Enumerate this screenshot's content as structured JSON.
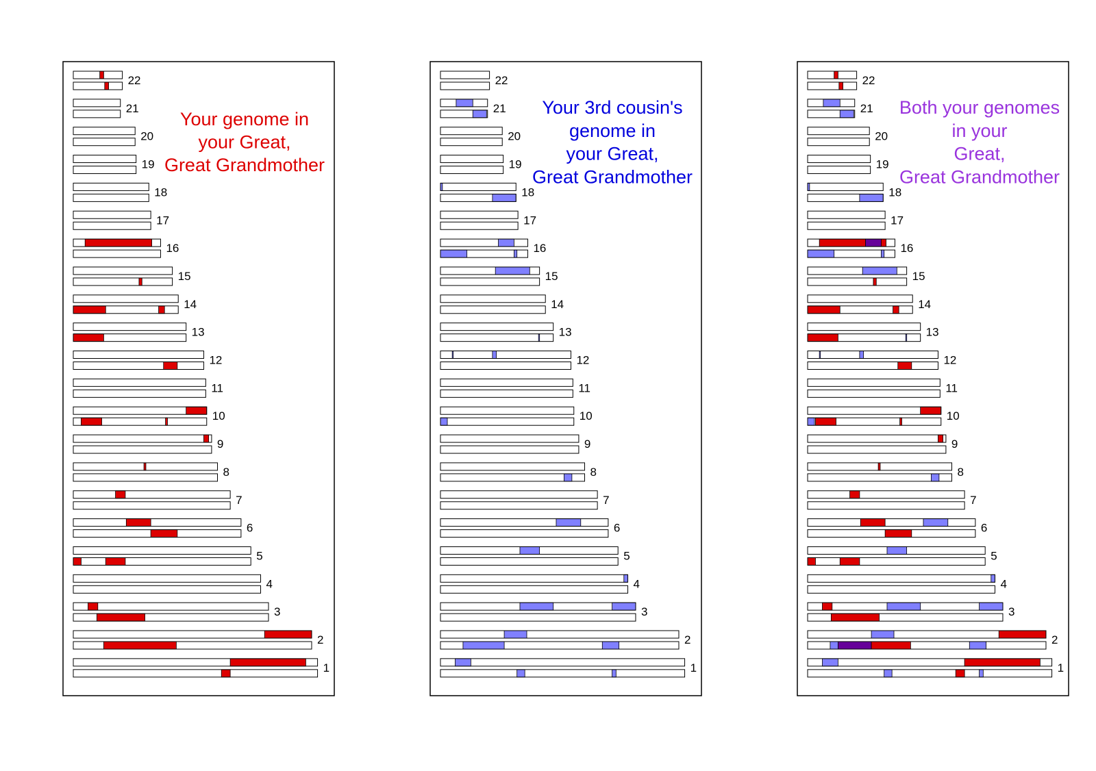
{
  "colors": {
    "red": "#dd0000",
    "blue": "#8080ff",
    "purple": "#660099",
    "outline": "#000000",
    "fill": "#ffffff"
  },
  "chart_data": [
    {
      "type": "chromosome-ideogram",
      "title_lines": [
        "Your genome in",
        "your Great,",
        "Great Grandmother"
      ],
      "title_color": "#dd0000",
      "chromosome_lengths": {
        "1": 249,
        "2": 243,
        "3": 199,
        "4": 191,
        "5": 181,
        "6": 171,
        "7": 160,
        "8": 147,
        "9": 141,
        "10": 136,
        "11": 135,
        "12": 133,
        "13": 115,
        "14": 107,
        "15": 101,
        "16": 89,
        "17": 79,
        "18": 77,
        "19": 64,
        "20": 63,
        "21": 48,
        "22": 50
      },
      "segments": [
        {
          "chr": "22",
          "strand": 1,
          "start": 27,
          "end": 31,
          "color": "red"
        },
        {
          "chr": "22",
          "strand": 2,
          "start": 32,
          "end": 36,
          "color": "red"
        },
        {
          "chr": "16",
          "strand": 1,
          "start": 12,
          "end": 80,
          "color": "red"
        },
        {
          "chr": "15",
          "strand": 2,
          "start": 67,
          "end": 70,
          "color": "red"
        },
        {
          "chr": "14",
          "strand": 2,
          "start": 0,
          "end": 33,
          "color": "red"
        },
        {
          "chr": "14",
          "strand": 2,
          "start": 87,
          "end": 93,
          "color": "red"
        },
        {
          "chr": "13",
          "strand": 2,
          "start": 0,
          "end": 31,
          "color": "red"
        },
        {
          "chr": "12",
          "strand": 2,
          "start": 92,
          "end": 106,
          "color": "red"
        },
        {
          "chr": "10",
          "strand": 1,
          "start": 115,
          "end": 136,
          "color": "red"
        },
        {
          "chr": "10",
          "strand": 2,
          "start": 8,
          "end": 29,
          "color": "red"
        },
        {
          "chr": "10",
          "strand": 2,
          "start": 94,
          "end": 96,
          "color": "red"
        },
        {
          "chr": "9",
          "strand": 1,
          "start": 133,
          "end": 138,
          "color": "red"
        },
        {
          "chr": "8",
          "strand": 1,
          "start": 72,
          "end": 74,
          "color": "red"
        },
        {
          "chr": "7",
          "strand": 1,
          "start": 43,
          "end": 53,
          "color": "red"
        },
        {
          "chr": "6",
          "strand": 1,
          "start": 54,
          "end": 79,
          "color": "red"
        },
        {
          "chr": "6",
          "strand": 2,
          "start": 79,
          "end": 106,
          "color": "red"
        },
        {
          "chr": "5",
          "strand": 2,
          "start": 0,
          "end": 8,
          "color": "red"
        },
        {
          "chr": "5",
          "strand": 2,
          "start": 33,
          "end": 53,
          "color": "red"
        },
        {
          "chr": "3",
          "strand": 1,
          "start": 15,
          "end": 25,
          "color": "red"
        },
        {
          "chr": "3",
          "strand": 2,
          "start": 24,
          "end": 73,
          "color": "red"
        },
        {
          "chr": "2",
          "strand": 1,
          "start": 195,
          "end": 243,
          "color": "red"
        },
        {
          "chr": "2",
          "strand": 2,
          "start": 31,
          "end": 105,
          "color": "red"
        },
        {
          "chr": "1",
          "strand": 1,
          "start": 160,
          "end": 237,
          "color": "red"
        },
        {
          "chr": "1",
          "strand": 2,
          "start": 151,
          "end": 160,
          "color": "red"
        }
      ]
    },
    {
      "type": "chromosome-ideogram",
      "title_lines": [
        "Your 3rd cousin's",
        "genome in",
        "your Great,",
        "Great Grandmother"
      ],
      "title_color": "#0000dd",
      "chromosome_lengths": {
        "1": 249,
        "2": 243,
        "3": 199,
        "4": 191,
        "5": 181,
        "6": 171,
        "7": 160,
        "8": 147,
        "9": 141,
        "10": 136,
        "11": 135,
        "12": 133,
        "13": 115,
        "14": 107,
        "15": 101,
        "16": 89,
        "17": 79,
        "18": 77,
        "19": 64,
        "20": 63,
        "21": 48,
        "22": 50
      },
      "segments": [
        {
          "chr": "21",
          "strand": 1,
          "start": 16,
          "end": 33,
          "color": "blue"
        },
        {
          "chr": "21",
          "strand": 2,
          "start": 33,
          "end": 47,
          "color": "blue"
        },
        {
          "chr": "18",
          "strand": 1,
          "start": 0,
          "end": 2,
          "color": "blue"
        },
        {
          "chr": "18",
          "strand": 2,
          "start": 53,
          "end": 77,
          "color": "blue"
        },
        {
          "chr": "16",
          "strand": 1,
          "start": 59,
          "end": 75,
          "color": "blue"
        },
        {
          "chr": "16",
          "strand": 2,
          "start": 0,
          "end": 27,
          "color": "blue"
        },
        {
          "chr": "16",
          "strand": 2,
          "start": 75,
          "end": 78,
          "color": "blue"
        },
        {
          "chr": "15",
          "strand": 1,
          "start": 56,
          "end": 91,
          "color": "blue"
        },
        {
          "chr": "13",
          "strand": 2,
          "start": 100,
          "end": 101,
          "color": "blue"
        },
        {
          "chr": "12",
          "strand": 1,
          "start": 12,
          "end": 13,
          "color": "blue"
        },
        {
          "chr": "12",
          "strand": 1,
          "start": 53,
          "end": 57,
          "color": "blue"
        },
        {
          "chr": "10",
          "strand": 2,
          "start": 0,
          "end": 7,
          "color": "blue"
        },
        {
          "chr": "8",
          "strand": 2,
          "start": 126,
          "end": 134,
          "color": "blue"
        },
        {
          "chr": "6",
          "strand": 1,
          "start": 118,
          "end": 143,
          "color": "blue"
        },
        {
          "chr": "5",
          "strand": 1,
          "start": 81,
          "end": 101,
          "color": "blue"
        },
        {
          "chr": "4",
          "strand": 1,
          "start": 187,
          "end": 191,
          "color": "blue"
        },
        {
          "chr": "3",
          "strand": 1,
          "start": 81,
          "end": 115,
          "color": "blue"
        },
        {
          "chr": "3",
          "strand": 1,
          "start": 175,
          "end": 199,
          "color": "blue"
        },
        {
          "chr": "2",
          "strand": 1,
          "start": 65,
          "end": 88,
          "color": "blue"
        },
        {
          "chr": "2",
          "strand": 2,
          "start": 23,
          "end": 65,
          "color": "blue"
        },
        {
          "chr": "2",
          "strand": 2,
          "start": 165,
          "end": 182,
          "color": "blue"
        },
        {
          "chr": "1",
          "strand": 1,
          "start": 15,
          "end": 31,
          "color": "blue"
        },
        {
          "chr": "1",
          "strand": 2,
          "start": 78,
          "end": 86,
          "color": "blue"
        },
        {
          "chr": "1",
          "strand": 2,
          "start": 175,
          "end": 179,
          "color": "blue"
        }
      ]
    },
    {
      "type": "chromosome-ideogram",
      "title_lines": [
        "Both your genomes",
        "in your",
        "Great,",
        "Great Grandmother"
      ],
      "title_color": "#9933dd",
      "chromosome_lengths": {
        "1": 249,
        "2": 243,
        "3": 199,
        "4": 191,
        "5": 181,
        "6": 171,
        "7": 160,
        "8": 147,
        "9": 141,
        "10": 136,
        "11": 135,
        "12": 133,
        "13": 115,
        "14": 107,
        "15": 101,
        "16": 89,
        "17": 79,
        "18": 77,
        "19": 64,
        "20": 63,
        "21": 48,
        "22": 50
      },
      "segments": [
        {
          "chr": "22",
          "strand": 1,
          "start": 27,
          "end": 31,
          "color": "red"
        },
        {
          "chr": "22",
          "strand": 2,
          "start": 32,
          "end": 36,
          "color": "red"
        },
        {
          "chr": "21",
          "strand": 1,
          "start": 16,
          "end": 33,
          "color": "blue"
        },
        {
          "chr": "21",
          "strand": 2,
          "start": 33,
          "end": 47,
          "color": "blue"
        },
        {
          "chr": "18",
          "strand": 1,
          "start": 0,
          "end": 2,
          "color": "blue"
        },
        {
          "chr": "18",
          "strand": 2,
          "start": 53,
          "end": 77,
          "color": "blue"
        },
        {
          "chr": "16",
          "strand": 1,
          "start": 12,
          "end": 59,
          "color": "red"
        },
        {
          "chr": "16",
          "strand": 1,
          "start": 59,
          "end": 75,
          "color": "purple"
        },
        {
          "chr": "16",
          "strand": 1,
          "start": 75,
          "end": 80,
          "color": "red"
        },
        {
          "chr": "16",
          "strand": 2,
          "start": 0,
          "end": 27,
          "color": "blue"
        },
        {
          "chr": "16",
          "strand": 2,
          "start": 75,
          "end": 78,
          "color": "blue"
        },
        {
          "chr": "15",
          "strand": 1,
          "start": 56,
          "end": 91,
          "color": "blue"
        },
        {
          "chr": "15",
          "strand": 2,
          "start": 67,
          "end": 70,
          "color": "red"
        },
        {
          "chr": "14",
          "strand": 2,
          "start": 0,
          "end": 33,
          "color": "red"
        },
        {
          "chr": "14",
          "strand": 2,
          "start": 87,
          "end": 93,
          "color": "red"
        },
        {
          "chr": "13",
          "strand": 2,
          "start": 0,
          "end": 31,
          "color": "red"
        },
        {
          "chr": "13",
          "strand": 2,
          "start": 100,
          "end": 101,
          "color": "blue"
        },
        {
          "chr": "12",
          "strand": 1,
          "start": 12,
          "end": 13,
          "color": "blue"
        },
        {
          "chr": "12",
          "strand": 1,
          "start": 53,
          "end": 57,
          "color": "blue"
        },
        {
          "chr": "12",
          "strand": 2,
          "start": 92,
          "end": 106,
          "color": "red"
        },
        {
          "chr": "10",
          "strand": 1,
          "start": 115,
          "end": 136,
          "color": "red"
        },
        {
          "chr": "10",
          "strand": 2,
          "start": 0,
          "end": 7,
          "color": "blue"
        },
        {
          "chr": "10",
          "strand": 2,
          "start": 8,
          "end": 29,
          "color": "red"
        },
        {
          "chr": "10",
          "strand": 2,
          "start": 94,
          "end": 96,
          "color": "red"
        },
        {
          "chr": "9",
          "strand": 1,
          "start": 133,
          "end": 138,
          "color": "red"
        },
        {
          "chr": "8",
          "strand": 1,
          "start": 72,
          "end": 74,
          "color": "red"
        },
        {
          "chr": "8",
          "strand": 2,
          "start": 126,
          "end": 134,
          "color": "blue"
        },
        {
          "chr": "7",
          "strand": 1,
          "start": 43,
          "end": 53,
          "color": "red"
        },
        {
          "chr": "6",
          "strand": 1,
          "start": 54,
          "end": 79,
          "color": "red"
        },
        {
          "chr": "6",
          "strand": 1,
          "start": 118,
          "end": 143,
          "color": "blue"
        },
        {
          "chr": "6",
          "strand": 2,
          "start": 79,
          "end": 106,
          "color": "red"
        },
        {
          "chr": "5",
          "strand": 1,
          "start": 81,
          "end": 101,
          "color": "blue"
        },
        {
          "chr": "5",
          "strand": 2,
          "start": 0,
          "end": 8,
          "color": "red"
        },
        {
          "chr": "5",
          "strand": 2,
          "start": 33,
          "end": 53,
          "color": "red"
        },
        {
          "chr": "4",
          "strand": 1,
          "start": 187,
          "end": 191,
          "color": "blue"
        },
        {
          "chr": "3",
          "strand": 1,
          "start": 15,
          "end": 25,
          "color": "red"
        },
        {
          "chr": "3",
          "strand": 1,
          "start": 81,
          "end": 115,
          "color": "blue"
        },
        {
          "chr": "3",
          "strand": 1,
          "start": 175,
          "end": 199,
          "color": "blue"
        },
        {
          "chr": "3",
          "strand": 2,
          "start": 24,
          "end": 73,
          "color": "red"
        },
        {
          "chr": "2",
          "strand": 1,
          "start": 65,
          "end": 88,
          "color": "blue"
        },
        {
          "chr": "2",
          "strand": 1,
          "start": 195,
          "end": 243,
          "color": "red"
        },
        {
          "chr": "2",
          "strand": 2,
          "start": 23,
          "end": 31,
          "color": "blue"
        },
        {
          "chr": "2",
          "strand": 2,
          "start": 31,
          "end": 65,
          "color": "purple"
        },
        {
          "chr": "2",
          "strand": 2,
          "start": 65,
          "end": 105,
          "color": "red"
        },
        {
          "chr": "2",
          "strand": 2,
          "start": 165,
          "end": 182,
          "color": "blue"
        },
        {
          "chr": "1",
          "strand": 1,
          "start": 15,
          "end": 31,
          "color": "blue"
        },
        {
          "chr": "1",
          "strand": 1,
          "start": 160,
          "end": 237,
          "color": "red"
        },
        {
          "chr": "1",
          "strand": 2,
          "start": 78,
          "end": 86,
          "color": "blue"
        },
        {
          "chr": "1",
          "strand": 2,
          "start": 151,
          "end": 160,
          "color": "red"
        },
        {
          "chr": "1",
          "strand": 2,
          "start": 175,
          "end": 179,
          "color": "blue"
        }
      ]
    }
  ]
}
